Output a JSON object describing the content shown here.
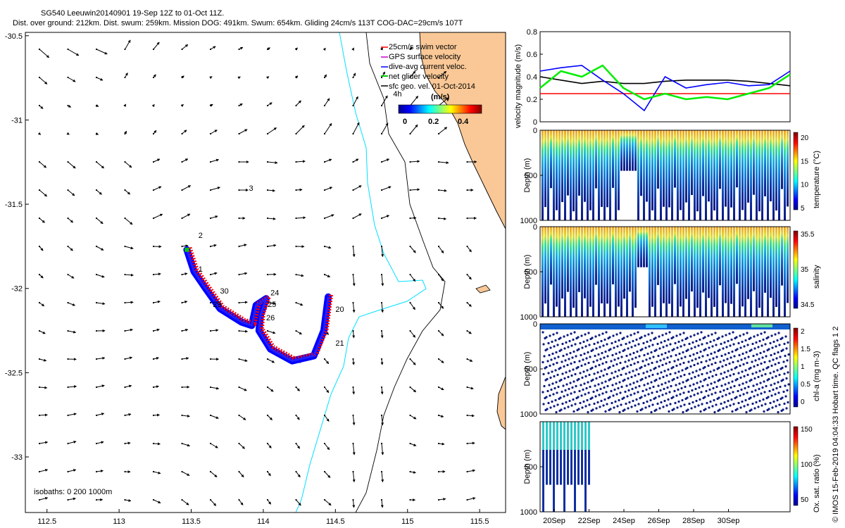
{
  "header": {
    "line1": "SG540 Leeuwin20140901 19-Sep 12Z to 01-Oct 11Z.",
    "line2": "Dist. over ground: 212km. Dist. swum: 259km. Mission DOG: 491km. Swum: 654km. Gliding 24cm/s 113T COG-DAC=29cm/s 107T"
  },
  "side_credit": "© IMOS 15-Feb-2019 04:04:33 Hobart time. QC flags 1  2",
  "chart_data": [
    {
      "type": "scatter",
      "name": "map",
      "x_ticks": [
        112.5,
        113,
        113.5,
        114,
        114.5,
        115,
        115.5
      ],
      "y_ticks": [
        -30.5,
        -31,
        -31.5,
        -32,
        -32.5,
        -33
      ],
      "xlim": [
        112.35,
        115.68
      ],
      "ylim": [
        -33.33,
        -30.48
      ],
      "legend": {
        "items": [
          {
            "label": "25cm/s swim vector",
            "color": "#ff0000"
          },
          {
            "label": "GPS surface velocity",
            "color": "#cc00cc"
          },
          {
            "label": "dive-avg current veloc.",
            "color": "#0000ff"
          },
          {
            "label": "net glider velocity",
            "color": "#00cc00"
          },
          {
            "label": "sfc geo. vel. 01-Oct-2014",
            "color": "#000000"
          }
        ],
        "placement": "top-center"
      },
      "colorbar": {
        "label": "(m/s)",
        "ticks": [
          "0",
          "0.2",
          "0.4"
        ]
      },
      "isobath_label": "isobaths: 0   200  1000m",
      "day_labels": [
        {
          "text": "4h",
          "lon": 114.9,
          "lat": -30.86
        },
        {
          "text": "3",
          "lon": 113.9,
          "lat": -31.42
        },
        {
          "text": "2",
          "lon": 113.55,
          "lat": -31.7
        },
        {
          "text": "1",
          "lon": 113.55,
          "lat": -31.9
        },
        {
          "text": "30",
          "lon": 113.7,
          "lat": -32.03
        },
        {
          "text": "29",
          "lon": 113.65,
          "lat": -32.11
        },
        {
          "text": "24",
          "lon": 114.05,
          "lat": -32.04
        },
        {
          "text": "25",
          "lon": 114.03,
          "lat": -32.11
        },
        {
          "text": "26",
          "lon": 114.02,
          "lat": -32.19
        },
        {
          "text": "20",
          "lon": 114.5,
          "lat": -32.14
        },
        {
          "text": "21",
          "lon": 114.5,
          "lat": -32.34
        }
      ],
      "track": [
        [
          113.47,
          -31.77
        ],
        [
          113.52,
          -31.9
        ],
        [
          113.6,
          -32.0
        ],
        [
          113.7,
          -32.12
        ],
        [
          113.85,
          -32.2
        ],
        [
          113.92,
          -32.22
        ],
        [
          113.95,
          -32.1
        ],
        [
          114.02,
          -32.06
        ],
        [
          113.98,
          -32.16
        ],
        [
          113.97,
          -32.25
        ],
        [
          114.05,
          -32.36
        ],
        [
          114.2,
          -32.43
        ],
        [
          114.35,
          -32.4
        ],
        [
          114.42,
          -32.25
        ],
        [
          114.45,
          -32.05
        ]
      ]
    },
    {
      "type": "line",
      "name": "velocity",
      "ylabel": "velocity magnitude (m/s)",
      "yticks": [
        0,
        0.2,
        0.4,
        0.6,
        0.8
      ],
      "ylim": [
        0,
        0.8
      ],
      "x": [
        19.5,
        20.5,
        21.5,
        22.5,
        23.5,
        24.5,
        25.5,
        26.5,
        27.5,
        28.5,
        29.5,
        30.5,
        31.5
      ],
      "series": [
        {
          "color": "#ff0000",
          "values": [
            0.25,
            0.25,
            0.25,
            0.25,
            0.25,
            0.25,
            0.25,
            0.25,
            0.25,
            0.25,
            0.25,
            0.25,
            0.25
          ]
        },
        {
          "color": "#000000",
          "values": [
            0.4,
            0.37,
            0.34,
            0.36,
            0.34,
            0.34,
            0.36,
            0.37,
            0.37,
            0.37,
            0.36,
            0.34,
            0.32
          ]
        },
        {
          "color": "#0000ff",
          "values": [
            0.45,
            0.48,
            0.5,
            0.37,
            0.25,
            0.1,
            0.4,
            0.3,
            0.33,
            0.35,
            0.32,
            0.33,
            0.45
          ]
        },
        {
          "color": "#00ee00",
          "values": [
            0.3,
            0.45,
            0.4,
            0.5,
            0.3,
            0.2,
            0.25,
            0.2,
            0.22,
            0.2,
            0.25,
            0.3,
            0.42
          ]
        }
      ]
    },
    {
      "type": "scatter",
      "name": "temperature",
      "ylabel": "Depth (m)",
      "yticks": [
        0,
        500,
        1000
      ],
      "colorbar_label": "temperature (°C)",
      "colorbar_ticks": [
        "20",
        "15",
        "10",
        "5"
      ]
    },
    {
      "type": "scatter",
      "name": "salinity",
      "ylabel": "Depth (m)",
      "yticks": [
        0,
        500,
        1000
      ],
      "colorbar_label": "salinity",
      "colorbar_ticks": [
        "35.5",
        "35",
        "34.5"
      ]
    },
    {
      "type": "scatter",
      "name": "chl-a",
      "ylabel": "Depth (m)",
      "yticks": [
        0,
        500,
        1000
      ],
      "colorbar_label": "chl-a (mg m-3)",
      "colorbar_ticks": [
        "2",
        "1.5",
        "1",
        "0.5",
        "0"
      ]
    },
    {
      "type": "scatter",
      "name": "oxygen",
      "ylabel": "Depth (m)",
      "yticks": [
        500,
        1000
      ],
      "colorbar_label": "Ox. sat. ratio (%)",
      "colorbar_ticks": [
        "150",
        "100",
        "50"
      ],
      "x_ticks": [
        "20Sep",
        "22Sep",
        "24Sep",
        "26Sep",
        "28Sep",
        "30Sep"
      ]
    }
  ]
}
